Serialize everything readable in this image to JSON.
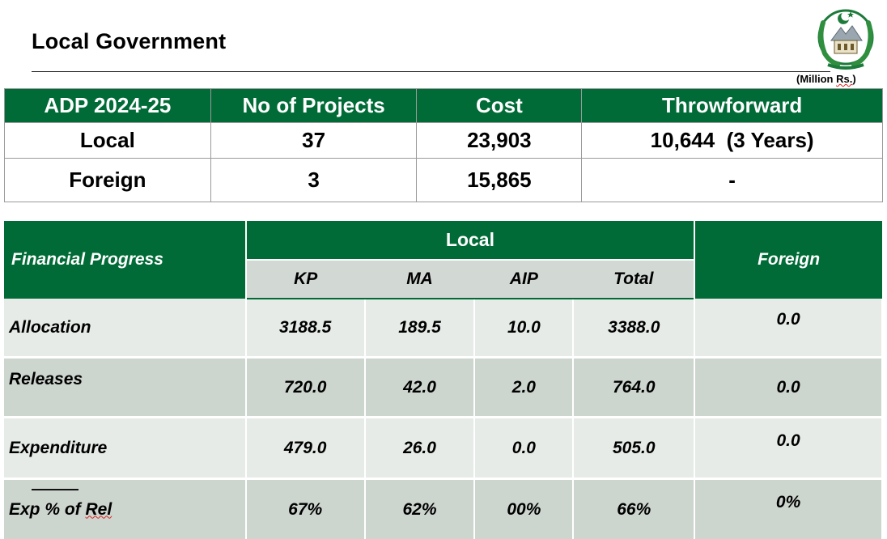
{
  "header": {
    "title": "Local Government",
    "unit_note_prefix": "(Million ",
    "unit_note_tail": "Rs.",
    "unit_note_suffix": ")"
  },
  "summary_table": {
    "headers": [
      "ADP 2024-25",
      "No of Projects",
      "Cost",
      "Throwforward"
    ],
    "rows": [
      {
        "label": "Local",
        "projects": "37",
        "cost": "23,903",
        "throwforward": "10,644  (3 Years)"
      },
      {
        "label": "Foreign",
        "projects": "3",
        "cost": "15,865",
        "throwforward": "-"
      }
    ]
  },
  "progress_table": {
    "row_header": "Financial Progress",
    "group_header": "Local",
    "foreign_header": "Foreign",
    "sub_headers": [
      "KP",
      "MA",
      "AIP",
      "Total"
    ],
    "rows": [
      {
        "label": "Allocation",
        "kp": "3188.5",
        "ma": "189.5",
        "aip": "10.0",
        "total": "3388.0",
        "foreign": "0.0"
      },
      {
        "label": "Releases",
        "kp": "720.0",
        "ma": "42.0",
        "aip": "2.0",
        "total": "764.0",
        "foreign": "0.0"
      },
      {
        "label": "Expenditure",
        "kp": "479.0",
        "ma": "26.0",
        "aip": "0.0",
        "total": "505.0",
        "foreign": "0.0"
      },
      {
        "label_prefix": "Exp % of ",
        "label_tail": "Rel",
        "kp": "67%",
        "ma": "62%",
        "aip": "00%",
        "total": "66%",
        "foreign": "0%"
      }
    ]
  },
  "colors": {
    "header_green": "#006b36",
    "band_light": "#e6ebe7",
    "band_dark": "#cdd5cf",
    "subheader_gray": "#d2d8d3"
  },
  "icons": {
    "emblem": "provincial-emblem-icon"
  }
}
